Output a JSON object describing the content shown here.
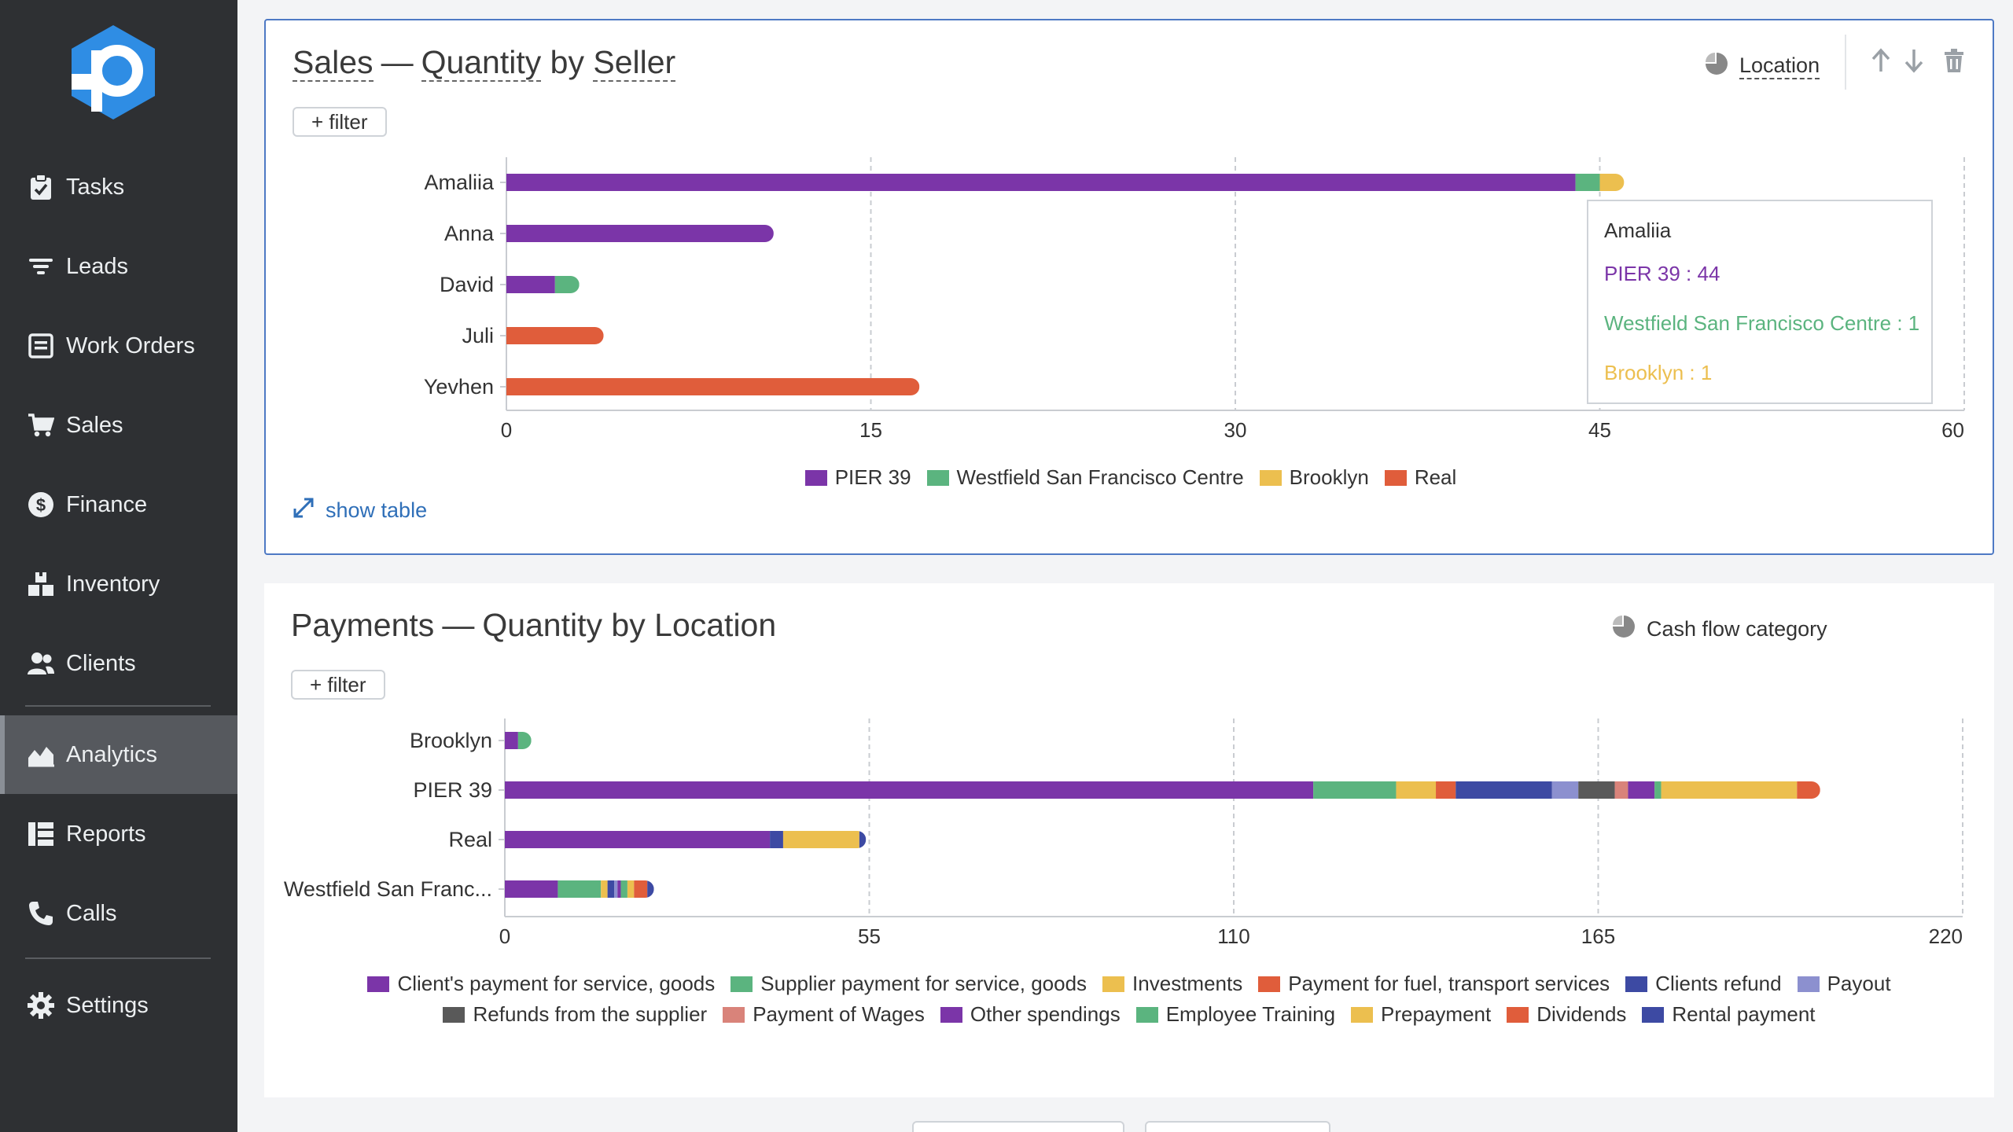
{
  "sidebar": {
    "items": [
      {
        "label": "Tasks",
        "icon": "clipboard-icon"
      },
      {
        "label": "Leads",
        "icon": "filter-icon"
      },
      {
        "label": "Work Orders",
        "icon": "work-orders-icon"
      },
      {
        "label": "Sales",
        "icon": "cart-icon"
      },
      {
        "label": "Finance",
        "icon": "dollar-icon"
      },
      {
        "label": "Inventory",
        "icon": "boxes-icon"
      },
      {
        "label": "Clients",
        "icon": "users-icon"
      },
      {
        "label": "Analytics",
        "icon": "chart-area-icon",
        "active": true
      },
      {
        "label": "Reports",
        "icon": "reports-icon"
      },
      {
        "label": "Calls",
        "icon": "phone-icon"
      },
      {
        "label": "Settings",
        "icon": "gear-icon"
      }
    ]
  },
  "panel1": {
    "title_a": "Sales",
    "title_sep": "—",
    "title_b": "Quantity",
    "title_by": "by",
    "title_c": "Seller",
    "filter_label": "+ filter",
    "group_label": "Location",
    "show_table": "show table",
    "tooltip": {
      "title": "Amaliia",
      "rows": [
        "PIER 39 : 44",
        "Westfield San Francisco Centre : 1",
        "Brooklyn : 1"
      ]
    }
  },
  "panel2": {
    "title_a": "Payments",
    "title_sep": "—",
    "title_b": "Quantity",
    "title_by": "by",
    "title_c": "Location",
    "filter_label": "+ filter",
    "group_label": "Cash flow category"
  },
  "colors": {
    "purple": "#7b35a8",
    "green": "#5bb47f",
    "yellow": "#ecbf4f",
    "orange": "#e05d3b",
    "navy": "#3d4aa3",
    "lavender": "#8c90cf",
    "gray": "#595959",
    "salmon": "#d9837a",
    "accent_blue": "#4e79c4",
    "sidebar_bg": "#2e3033"
  },
  "chart_data": [
    {
      "type": "bar",
      "orientation": "horizontal",
      "stacked": true,
      "title": "Sales — Quantity by Seller",
      "categories": [
        "Amaliia",
        "Anna",
        "David",
        "Juli",
        "Yevhen"
      ],
      "series": [
        {
          "name": "PIER 39",
          "color": "#7b35a8",
          "values": [
            44,
            11,
            2,
            0,
            0
          ]
        },
        {
          "name": "Westfield San Francisco Centre",
          "color": "#5bb47f",
          "values": [
            1,
            0,
            1,
            0,
            0
          ]
        },
        {
          "name": "Brooklyn",
          "color": "#ecbf4f",
          "values": [
            1,
            0,
            0,
            0,
            0
          ]
        },
        {
          "name": "Real",
          "color": "#e05d3b",
          "values": [
            0,
            0,
            0,
            4,
            17
          ]
        }
      ],
      "xlim": [
        0,
        60
      ],
      "xticks": [
        0,
        15,
        30,
        45,
        60
      ],
      "grid": true,
      "legend": "bottom"
    },
    {
      "type": "bar",
      "orientation": "horizontal",
      "stacked": true,
      "title": "Payments — Quantity by Location",
      "categories": [
        "Brooklyn",
        "PIER 39",
        "Real",
        "Westfield San Franc..."
      ],
      "series": [
        {
          "name": "Client's payment for service, goods",
          "color": "#7b35a8",
          "values": [
            2,
            122,
            40,
            8
          ]
        },
        {
          "name": "Supplier payment for service, goods",
          "color": "#5bb47f",
          "values": [
            2,
            12.5,
            0,
            6.5
          ]
        },
        {
          "name": "Investments",
          "color": "#ecbf4f",
          "values": [
            0,
            6,
            0,
            1
          ]
        },
        {
          "name": "Payment for fuel, transport services",
          "color": "#e05d3b",
          "values": [
            0,
            3,
            0,
            0
          ]
        },
        {
          "name": "Clients refund",
          "color": "#3d4aa3",
          "values": [
            0,
            14.5,
            2,
            1
          ]
        },
        {
          "name": "Payout",
          "color": "#8c90cf",
          "values": [
            0,
            4,
            0,
            0.5
          ]
        },
        {
          "name": "Refunds from the supplier",
          "color": "#595959",
          "values": [
            0,
            5.5,
            0,
            0
          ]
        },
        {
          "name": "Payment of Wages",
          "color": "#d9837a",
          "values": [
            0,
            2,
            0,
            0
          ]
        },
        {
          "name": "Other spendings",
          "color": "#7b35a8",
          "values": [
            0,
            4,
            0,
            0.5
          ]
        },
        {
          "name": "Employee Training",
          "color": "#5bb47f",
          "values": [
            0,
            1,
            0,
            1
          ]
        },
        {
          "name": "Prepayment",
          "color": "#ecbf4f",
          "values": [
            0,
            20.5,
            11.5,
            1
          ]
        },
        {
          "name": "Dividends",
          "color": "#e05d3b",
          "values": [
            0,
            3.5,
            0,
            2
          ]
        },
        {
          "name": "Rental payment",
          "color": "#3d4aa3",
          "values": [
            0,
            0,
            1,
            1
          ]
        }
      ],
      "xlim": [
        0,
        220
      ],
      "xticks": [
        0,
        55,
        110,
        165,
        220
      ],
      "grid": true,
      "legend": "bottom"
    }
  ]
}
